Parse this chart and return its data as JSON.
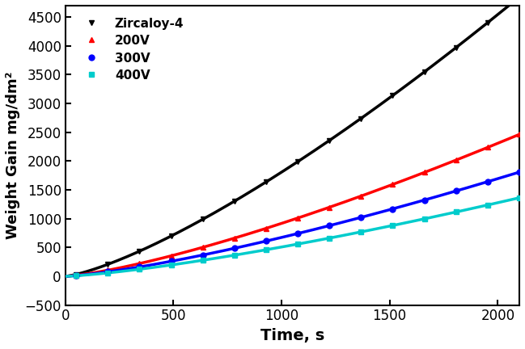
{
  "title": "",
  "xlabel": "Time, s",
  "ylabel": "Weight Gain mg/dm²",
  "xlim": [
    0,
    2100
  ],
  "ylim": [
    -500,
    4700
  ],
  "yticks": [
    -500,
    0,
    500,
    1000,
    1500,
    2000,
    2500,
    3000,
    3500,
    4000,
    4500
  ],
  "xticks": [
    0,
    500,
    1000,
    1500,
    2000
  ],
  "series": [
    {
      "label": "Zircaloy-4",
      "color": "#000000",
      "marker": "v",
      "markersize": 5,
      "linewidth": 2.5,
      "coeff": 0.185,
      "exponent": 1.33
    },
    {
      "label": "200V",
      "color": "#ff0000",
      "marker": "^",
      "markersize": 5,
      "linewidth": 2.5,
      "coeff": 0.094,
      "exponent": 1.33
    },
    {
      "label": "300V",
      "color": "#0000ff",
      "marker": "o",
      "markersize": 5,
      "linewidth": 2.5,
      "coeff": 0.069,
      "exponent": 1.33
    },
    {
      "label": "400V",
      "color": "#00cccc",
      "marker": "s",
      "markersize": 5,
      "linewidth": 2.5,
      "coeff": 0.052,
      "exponent": 1.33
    }
  ],
  "legend_loc": "upper left",
  "background_color": "#ffffff",
  "figure_facecolor": "#ffffff",
  "n_markers": 15,
  "xlabel_fontsize": 14,
  "ylabel_fontsize": 13,
  "tick_fontsize": 12
}
